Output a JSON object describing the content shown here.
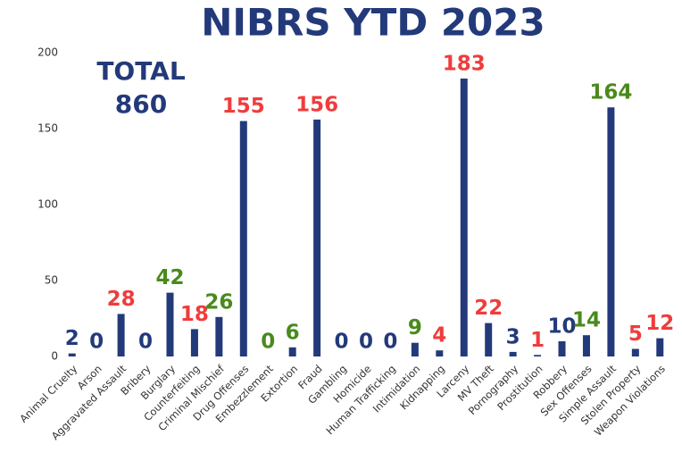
{
  "chart_data": {
    "type": "bar",
    "title": "NIBRS YTD 2023",
    "annotation": [
      "TOTAL",
      "860"
    ],
    "categories": [
      "Animal Cruelty",
      "Arson",
      "Aggravated Assault",
      "Bribery",
      "Burglary",
      "Counterfeiting",
      "Criminal Mischief",
      "Drug Offenses",
      "Embezzlement",
      "Extortion",
      "Fraud",
      "Gambling",
      "Homicide",
      "Human Trafficking",
      "Intimidation",
      "Kidnapping",
      "Larceny",
      "MV Theft",
      "Pornography",
      "Prostitution",
      "Robbery",
      "Sex Offenses",
      "Simple Assault",
      "Stolen Property",
      "Weapon Violations"
    ],
    "values": [
      2,
      0,
      28,
      0,
      42,
      18,
      26,
      155,
      0,
      6,
      156,
      0,
      0,
      0,
      9,
      4,
      183,
      22,
      3,
      1,
      10,
      14,
      164,
      5,
      12
    ],
    "color": "#233a7a",
    "label_colors": [
      "#233a7a",
      "#233a7a",
      "#f03c3c",
      "#233a7a",
      "#4a8a1c",
      "#f03c3c",
      "#4a8a1c",
      "#f03c3c",
      "#4a8a1c",
      "#4a8a1c",
      "#f03c3c",
      "#233a7a",
      "#233a7a",
      "#233a7a",
      "#4a8a1c",
      "#f03c3c",
      "#f03c3c",
      "#f03c3c",
      "#233a7a",
      "#f03c3c",
      "#233a7a",
      "#4a8a1c",
      "#4a8a1c",
      "#f03c3c",
      "#f03c3c"
    ],
    "ylim": [
      0,
      200
    ],
    "yticks": [
      0,
      50,
      100,
      150,
      200
    ],
    "grid": false
  }
}
